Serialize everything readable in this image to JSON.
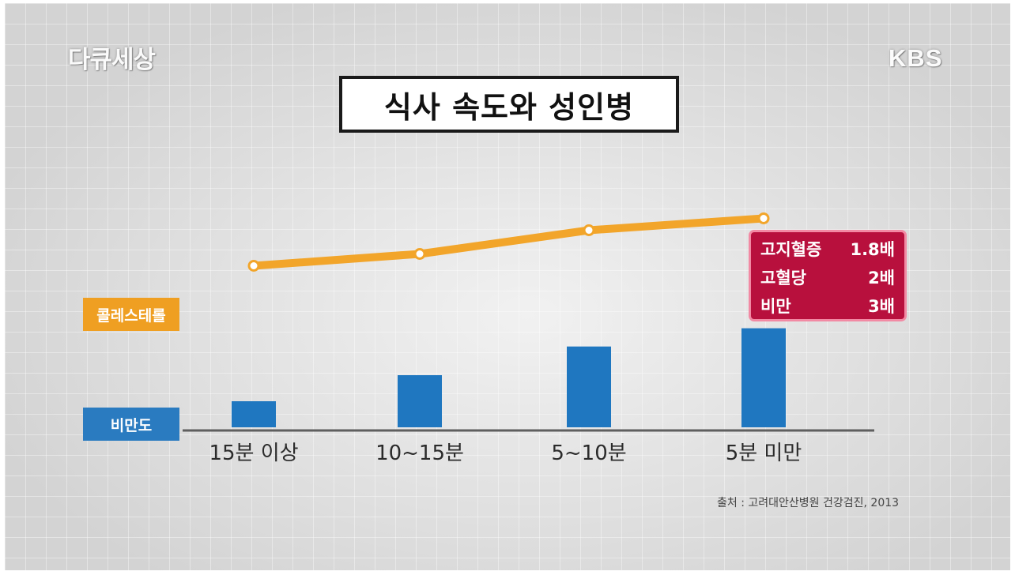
{
  "logos": {
    "program": "다큐세상",
    "broadcaster": "KBS"
  },
  "title": "식사 속도와 성인병",
  "source": "출처 : 고려대안산병원 건강검진, 2013",
  "ratio_box": {
    "rows": [
      {
        "label": "고지혈증",
        "value": "1.8배"
      },
      {
        "label": "고혈당",
        "value": "2배"
      },
      {
        "label": "비만",
        "value": "3배"
      }
    ]
  },
  "chart_data": {
    "type": "bar",
    "title": "식사 속도와 성인병",
    "categories": [
      "15분 이상",
      "10~15분",
      "5~10분",
      "5분 미만"
    ],
    "series": [
      {
        "name": "콜레스테롤",
        "type": "line",
        "color": "#f2a52a",
        "values": [
          1.3,
          1.5,
          1.9,
          2.1
        ]
      },
      {
        "name": "비만도",
        "type": "bar",
        "color": "#1f77c0",
        "values": [
          1.0,
          2.0,
          3.1,
          3.8
        ]
      }
    ],
    "axes_shown": false,
    "legend": "left",
    "grid": false
  }
}
